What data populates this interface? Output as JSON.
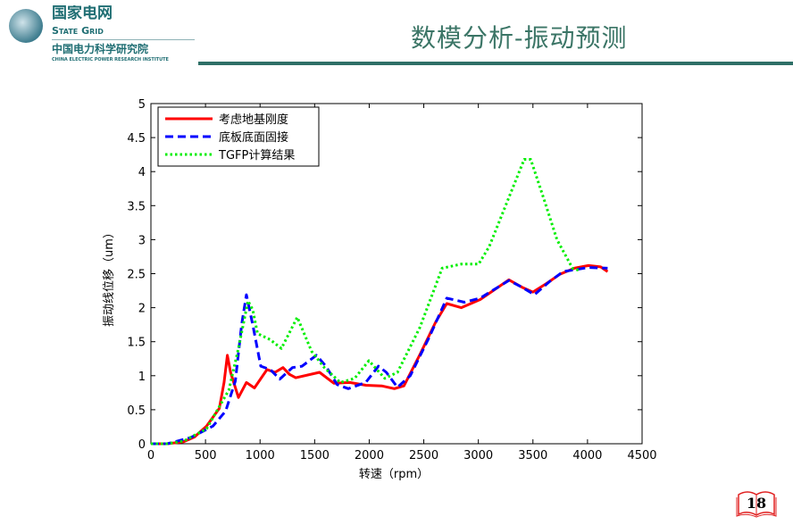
{
  "header": {
    "brand_cn": "国家电网",
    "brand_en": "State Grid",
    "institute_cn": "中国电力科学研究院",
    "institute_en": "CHINA ELECTRIC POWER RESEARCH INSTITUTE",
    "title": "数模分析-振动预测"
  },
  "page_number": "18",
  "chart_data": {
    "type": "line",
    "title": "",
    "xlabel": "转速（rpm）",
    "ylabel": "振动线位移（um）",
    "xlim": [
      0,
      4500
    ],
    "ylim": [
      0,
      5
    ],
    "xticks": [
      0,
      500,
      1000,
      1500,
      2000,
      2500,
      3000,
      3500,
      4000,
      4500
    ],
    "yticks": [
      0,
      0.5,
      1,
      1.5,
      2,
      2.5,
      3,
      3.5,
      4,
      4.5,
      5
    ],
    "ytick_labels": [
      "0",
      "0.5",
      "1",
      "1.5",
      "2",
      "2.5",
      "3",
      "3.5",
      "4",
      "4.5",
      "5"
    ],
    "legend_position": "top-left",
    "grid": false,
    "series": [
      {
        "name": "考虑地基刚度",
        "color": "#ff0000",
        "style": "solid",
        "x": [
          0,
          150,
          300,
          400,
          510,
          627,
          670,
          700,
          730,
          802,
          875,
          948,
          1064,
          1137,
          1210,
          1270,
          1327,
          1545,
          1676,
          1822,
          1970,
          2114,
          2230,
          2318,
          2464,
          2609,
          2711,
          2843,
          3017,
          3280,
          3400,
          3499,
          3620,
          3746,
          3880,
          4009,
          4120,
          4184
        ],
        "y": [
          0,
          0,
          0.03,
          0.1,
          0.26,
          0.52,
          0.9,
          1.3,
          1.05,
          0.68,
          0.9,
          0.82,
          1.09,
          1.05,
          1.12,
          1.02,
          0.97,
          1.05,
          0.89,
          0.9,
          0.86,
          0.85,
          0.81,
          0.85,
          1.31,
          1.79,
          2.06,
          2.0,
          2.12,
          2.41,
          2.3,
          2.23,
          2.35,
          2.49,
          2.58,
          2.62,
          2.6,
          2.53
        ]
      },
      {
        "name": "底板底面固接",
        "color": "#0000ff",
        "style": "dashed",
        "x": [
          0,
          150,
          364,
          569,
          685,
          773,
          831,
          875,
          933,
          1006,
          1093,
          1181,
          1297,
          1385,
          1516,
          1603,
          1706,
          1808,
          1968,
          2085,
          2157,
          2259,
          2376,
          2551,
          2711,
          2872,
          3017,
          3280,
          3400,
          3513,
          3650,
          3776,
          4009,
          4184
        ],
        "y": [
          0,
          0,
          0.09,
          0.26,
          0.48,
          0.92,
          1.75,
          2.19,
          1.75,
          1.14,
          1.09,
          0.95,
          1.12,
          1.14,
          1.3,
          1.14,
          0.87,
          0.81,
          0.9,
          1.14,
          1.05,
          0.83,
          1.0,
          1.57,
          2.14,
          2.08,
          2.14,
          2.4,
          2.3,
          2.19,
          2.38,
          2.53,
          2.59,
          2.58
        ]
      },
      {
        "name": "TGFP计算结果",
        "color": "#00ee00",
        "style": "dotted",
        "x": [
          0,
          150,
          300,
          510,
          714,
          802,
          889,
          933,
          977,
          1093,
          1195,
          1341,
          1472,
          1589,
          1735,
          1866,
          1997,
          2143,
          2259,
          2464,
          2668,
          2843,
          3003,
          3100,
          3300,
          3420,
          3480,
          3600,
          3720,
          3863,
          3920
        ],
        "y": [
          0,
          0,
          0.04,
          0.22,
          0.79,
          1.4,
          2.1,
          1.97,
          1.62,
          1.53,
          1.4,
          1.86,
          1.36,
          1.12,
          0.9,
          0.96,
          1.22,
          0.96,
          1.05,
          1.71,
          2.58,
          2.64,
          2.64,
          2.9,
          3.7,
          4.18,
          4.18,
          3.6,
          3.0,
          2.58,
          2.55
        ]
      }
    ]
  }
}
